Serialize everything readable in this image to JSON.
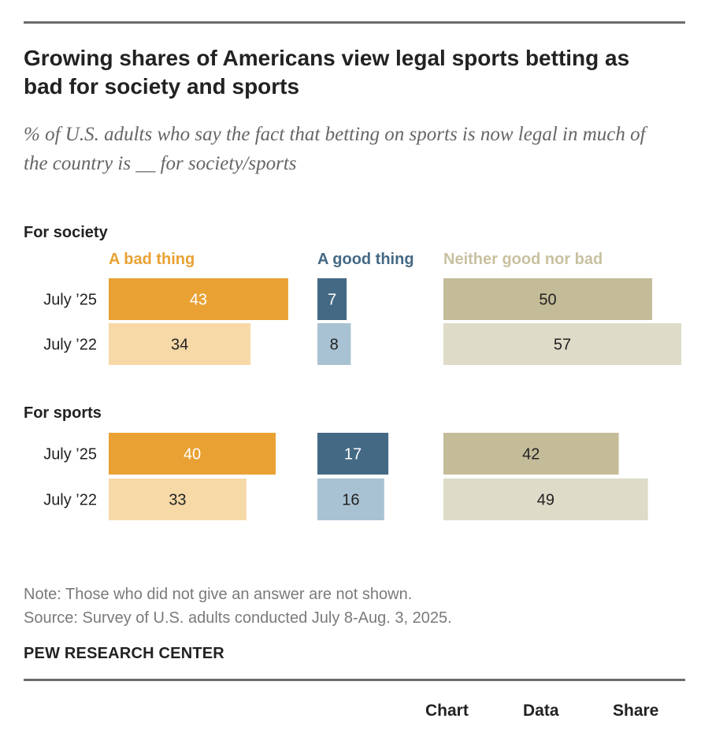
{
  "title": "Growing shares of Americans view legal sports betting as bad for society and sports",
  "subtitle": "% of U.S. adults who say the fact that betting on sports is now legal in much of the country is __ for society/sports",
  "colors": {
    "bad_dark": "#E9A133",
    "bad_light": "#F7D9A8",
    "good_dark": "#446985",
    "good_light": "#A9C2D3",
    "neither_dark": "#C4BC98",
    "neither_light": "#DEDBC9",
    "bad_header": "#E9A133",
    "good_header": "#446985",
    "neither_header": "#C8C1A0"
  },
  "chart_data": {
    "type": "bar",
    "orientation": "horizontal",
    "columns": [
      "A bad thing",
      "A good thing",
      "Neither good nor bad"
    ],
    "groups": [
      {
        "label": "For society",
        "rows": [
          {
            "label": "July ’25",
            "values": [
              43,
              7,
              50
            ]
          },
          {
            "label": "July ’22",
            "values": [
              34,
              8,
              57
            ]
          }
        ]
      },
      {
        "label": "For sports",
        "rows": [
          {
            "label": "July ’25",
            "values": [
              40,
              17,
              42
            ]
          },
          {
            "label": "July ’22",
            "values": [
              33,
              16,
              49
            ]
          }
        ]
      }
    ],
    "xlim": [
      0,
      100
    ],
    "unit": "%"
  },
  "note": "Note: Those who did not give an answer are not shown.",
  "source": "Source: Survey of U.S. adults conducted July 8-Aug. 3, 2025.",
  "brand": "PEW RESEARCH CENTER",
  "footer": {
    "chart_label": "Chart",
    "data_label": "Data",
    "share_label": "Share"
  }
}
